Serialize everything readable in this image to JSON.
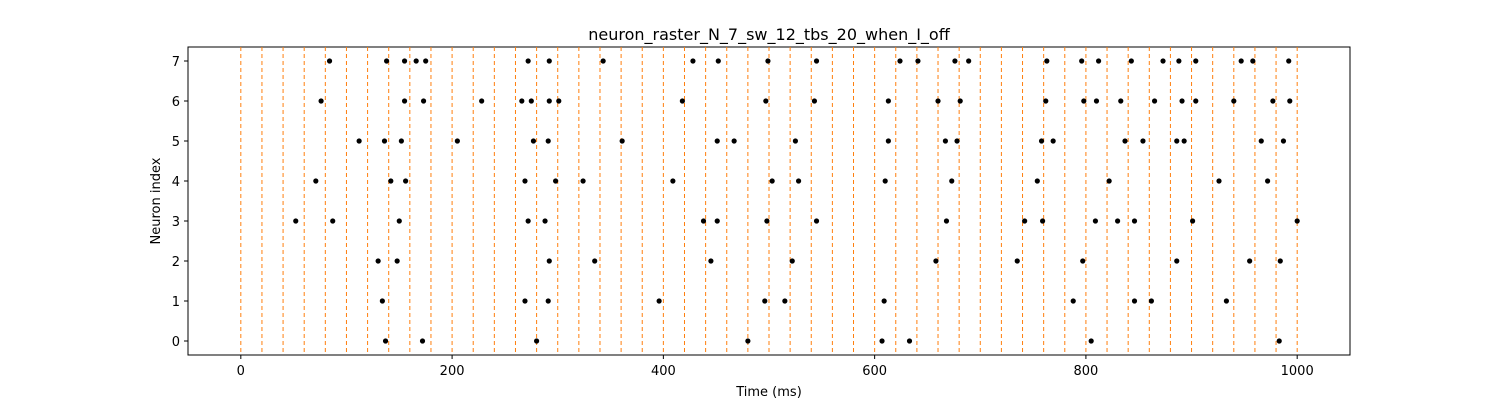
{
  "chart_data": {
    "type": "scatter",
    "title": "neuron_raster_N_7_sw_12_tbs_20_when_I_off",
    "xlabel": "Time (ms)",
    "ylabel": "Neuron index",
    "xlim": [
      -50,
      1050
    ],
    "ylim": [
      -0.35,
      7.35
    ],
    "xticks": [
      0,
      200,
      400,
      600,
      800,
      1000
    ],
    "yticks": [
      0,
      1,
      2,
      3,
      4,
      5,
      6,
      7
    ],
    "grid": false,
    "marker_color": "#000000",
    "time_bins": {
      "line_color": "#ff7f0e",
      "line_style": "dashed",
      "positions": [
        0,
        20,
        40,
        60,
        80,
        100,
        120,
        140,
        160,
        180,
        200,
        220,
        240,
        260,
        280,
        300,
        320,
        340,
        360,
        380,
        400,
        420,
        440,
        460,
        480,
        500,
        520,
        540,
        560,
        580,
        600,
        620,
        640,
        660,
        680,
        700,
        720,
        740,
        760,
        780,
        800,
        820,
        840,
        860,
        880,
        900,
        920,
        940,
        960,
        980,
        1000
      ]
    },
    "series": [
      {
        "neuron": 0,
        "spikes": [
          137,
          172,
          280,
          480,
          607,
          633,
          805,
          983
        ]
      },
      {
        "neuron": 1,
        "spikes": [
          134,
          269,
          291,
          396,
          496,
          515,
          609,
          788,
          846,
          862,
          933
        ]
      },
      {
        "neuron": 2,
        "spikes": [
          130,
          148,
          292,
          335,
          445,
          522,
          658,
          735,
          797,
          886,
          955,
          984
        ]
      },
      {
        "neuron": 3,
        "spikes": [
          52,
          87,
          150,
          272,
          288,
          438,
          451,
          498,
          545,
          668,
          742,
          759,
          809,
          830,
          846,
          901,
          1000
        ]
      },
      {
        "neuron": 4,
        "spikes": [
          71,
          142,
          156,
          269,
          298,
          324,
          409,
          503,
          528,
          610,
          673,
          754,
          822,
          926,
          972
        ]
      },
      {
        "neuron": 5,
        "spikes": [
          112,
          136,
          152,
          205,
          277,
          291,
          361,
          451,
          467,
          525,
          613,
          667,
          678,
          758,
          769,
          837,
          854,
          886,
          893,
          966,
          987
        ]
      },
      {
        "neuron": 6,
        "spikes": [
          76,
          155,
          173,
          228,
          266,
          275,
          292,
          301,
          418,
          497,
          543,
          613,
          660,
          681,
          762,
          798,
          810,
          833,
          865,
          891,
          904,
          940,
          977,
          993
        ]
      },
      {
        "neuron": 7,
        "spikes": [
          84,
          138,
          155,
          166,
          175,
          272,
          292,
          343,
          428,
          452,
          499,
          545,
          624,
          641,
          676,
          689,
          763,
          796,
          812,
          843,
          873,
          888,
          904,
          947,
          958,
          992
        ]
      }
    ]
  }
}
